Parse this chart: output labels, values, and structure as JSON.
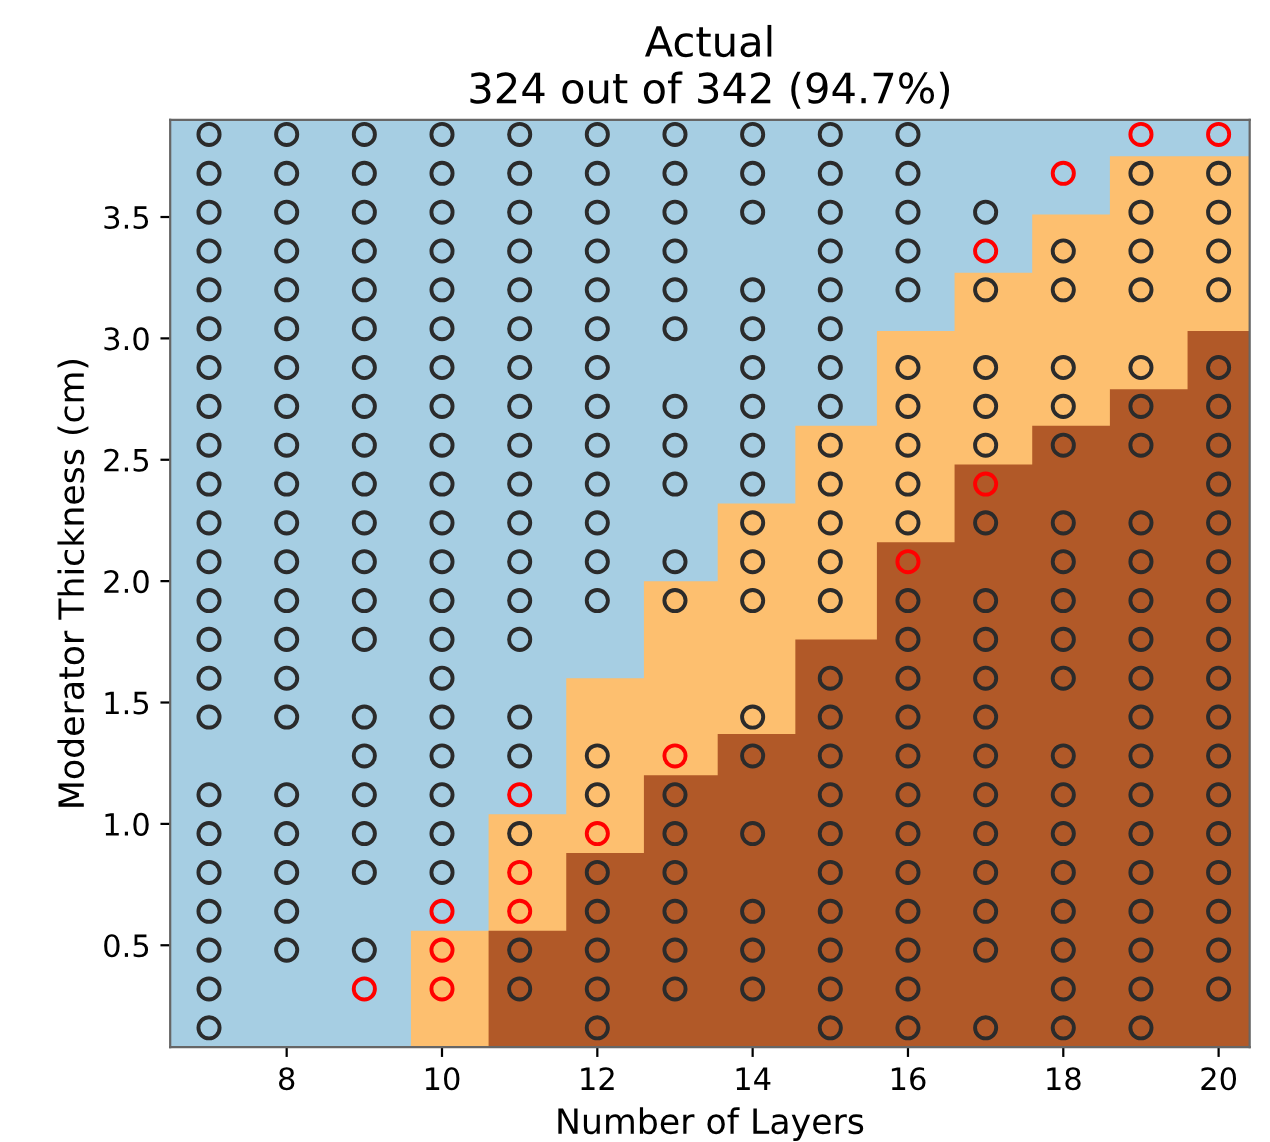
{
  "chart_data": {
    "type": "scatter",
    "title": "Actual\n324 out of 342 (94.7%)",
    "xlabel": "Number of Layers",
    "ylabel": "Moderator Thickness (cm)",
    "xlim": [
      6.5,
      20.4
    ],
    "ylim": [
      0.08,
      3.9
    ],
    "xticks": [
      8,
      10,
      12,
      14,
      16,
      18,
      20
    ],
    "yticks": [
      0.5,
      {
        "value": 1,
        "label": "1.0"
      },
      1.5,
      {
        "value": 2,
        "label": "2.0"
      },
      2.5,
      {
        "value": 3,
        "label": "3.0"
      },
      3.5
    ],
    "bands": [
      {
        "axis": "y",
        "from": 0.08,
        "to": 3.9,
        "color": "#a6cee3"
      }
    ],
    "series": [
      {
        "type": "area",
        "color": "#fdbf6f",
        "x": [
          9.6,
          10.6,
          10.6,
          11.6,
          11.6,
          12.6,
          12.6,
          13.55,
          13.55,
          14.55,
          14.55,
          15.6,
          15.6,
          16.6,
          16.6,
          17.6,
          17.6,
          18.6,
          18.6,
          19.6,
          19.6,
          20.4
        ],
        "values": [
          0.56,
          0.56,
          1.04,
          1.04,
          1.6,
          1.6,
          2.0,
          2.0,
          2.32,
          2.32,
          2.64,
          2.64,
          3.03,
          3.03,
          3.27,
          3.27,
          3.51,
          3.51,
          3.75,
          3.75,
          3.75,
          3.75
        ]
      },
      {
        "type": "area",
        "color": "#b15928",
        "x": [
          10.6,
          11.6,
          11.6,
          12.6,
          12.6,
          13.55,
          13.55,
          14.55,
          14.55,
          15.6,
          15.6,
          16.6,
          16.6,
          17.6,
          17.6,
          18.6,
          18.6,
          19.6,
          19.6,
          20.4
        ],
        "values": [
          0.56,
          0.56,
          0.88,
          0.88,
          1.2,
          1.2,
          1.37,
          1.37,
          1.76,
          1.76,
          2.16,
          2.16,
          2.48,
          2.48,
          2.64,
          2.64,
          2.79,
          2.79,
          3.03,
          3.03
        ]
      },
      {
        "marker": "circle",
        "color": "#2b2b2b",
        "x": [
          7,
          7,
          7,
          7,
          7,
          7,
          7,
          7,
          7,
          7,
          7,
          7,
          7,
          7,
          7,
          7,
          7,
          7,
          7,
          7,
          7,
          7,
          7,
          8,
          8,
          8,
          8,
          8,
          8,
          8,
          8,
          8,
          8,
          8,
          8,
          8,
          8,
          8,
          8,
          8,
          8,
          8,
          8,
          8,
          9,
          9,
          9,
          9,
          9,
          9,
          9,
          9,
          9,
          9,
          9,
          9,
          9,
          9,
          9,
          9,
          9,
          9,
          9,
          9,
          10,
          10,
          10,
          10,
          10,
          10,
          10,
          10,
          10,
          10,
          10,
          10,
          10,
          10,
          10,
          10,
          10,
          10,
          10,
          10,
          11,
          11,
          11,
          11,
          11,
          11,
          11,
          11,
          11,
          11,
          11,
          11,
          11,
          11,
          11,
          11,
          11,
          11,
          11,
          12,
          12,
          12,
          12,
          12,
          12,
          12,
          12,
          12,
          12,
          12,
          12,
          12,
          12,
          12,
          12,
          12,
          12,
          12,
          12,
          13,
          13,
          13,
          13,
          13,
          13,
          13,
          13,
          13,
          13,
          13,
          13,
          13,
          13,
          13,
          13,
          13,
          14,
          14,
          14,
          14,
          14,
          14,
          14,
          14,
          14,
          14,
          14,
          14,
          14,
          14,
          14,
          14,
          14,
          14,
          15,
          15,
          15,
          15,
          15,
          15,
          15,
          15,
          15,
          15,
          15,
          15,
          15,
          15,
          15,
          15,
          15,
          15,
          15,
          15,
          15,
          15,
          15,
          16,
          16,
          16,
          16,
          16,
          16,
          16,
          16,
          16,
          16,
          16,
          16,
          16,
          16,
          16,
          16,
          16,
          16,
          16,
          16,
          16,
          16,
          17,
          17,
          17,
          17,
          17,
          17,
          17,
          17,
          17,
          17,
          17,
          17,
          17,
          17,
          17,
          17,
          17,
          18,
          18,
          18,
          18,
          18,
          18,
          18,
          18,
          18,
          18,
          18,
          18,
          18,
          18,
          18,
          18,
          18,
          18,
          19,
          19,
          19,
          19,
          19,
          19,
          19,
          19,
          19,
          19,
          19,
          19,
          19,
          19,
          19,
          19,
          19,
          19,
          19,
          19,
          19,
          20,
          20,
          20,
          20,
          20,
          20,
          20,
          20,
          20,
          20,
          20,
          20,
          20,
          20,
          20,
          20,
          20,
          20,
          20,
          20,
          20
        ],
        "values": [
          0.16,
          0.32,
          0.48,
          0.64,
          0.8,
          0.96,
          1.12,
          1.44,
          1.6,
          1.76,
          1.92,
          2.08,
          2.24,
          2.4,
          2.56,
          2.72,
          2.88,
          3.04,
          3.2,
          3.36,
          3.52,
          3.68,
          3.84,
          0.48,
          0.64,
          0.8,
          0.96,
          1.12,
          1.44,
          1.6,
          1.76,
          1.92,
          2.08,
          2.24,
          2.4,
          2.56,
          2.72,
          2.88,
          3.04,
          3.2,
          3.36,
          3.52,
          3.68,
          3.84,
          0.48,
          0.8,
          0.96,
          1.12,
          1.28,
          1.44,
          1.76,
          1.92,
          2.08,
          2.24,
          2.4,
          2.56,
          2.72,
          2.88,
          3.04,
          3.2,
          3.36,
          3.52,
          3.68,
          3.84,
          0.8,
          0.96,
          1.12,
          1.28,
          1.44,
          1.6,
          1.76,
          1.92,
          2.08,
          2.24,
          2.4,
          2.56,
          2.72,
          2.88,
          3.04,
          3.2,
          3.36,
          3.52,
          3.68,
          3.84,
          0.32,
          0.48,
          0.96,
          1.28,
          1.44,
          1.76,
          1.92,
          2.08,
          2.24,
          2.4,
          2.56,
          2.72,
          2.88,
          3.04,
          3.2,
          3.36,
          3.52,
          3.68,
          3.84,
          0.16,
          0.32,
          0.48,
          0.64,
          0.8,
          1.12,
          1.28,
          1.92,
          2.08,
          2.24,
          2.4,
          2.56,
          2.72,
          2.88,
          3.04,
          3.2,
          3.36,
          3.52,
          3.68,
          3.84,
          0.32,
          0.48,
          0.64,
          0.8,
          0.96,
          1.12,
          1.92,
          2.08,
          2.4,
          2.56,
          2.72,
          3.04,
          3.2,
          3.36,
          3.52,
          3.68,
          3.84,
          0.32,
          0.48,
          0.64,
          0.96,
          1.28,
          1.44,
          1.92,
          2.08,
          2.24,
          2.4,
          2.56,
          2.72,
          2.88,
          3.04,
          3.2,
          3.52,
          3.68,
          3.84,
          0.16,
          0.32,
          0.48,
          0.64,
          0.8,
          0.96,
          1.12,
          1.28,
          1.44,
          1.6,
          1.92,
          2.08,
          2.24,
          2.4,
          2.56,
          2.72,
          2.88,
          3.04,
          3.2,
          3.36,
          3.52,
          3.68,
          3.84,
          0.16,
          0.32,
          0.48,
          0.64,
          0.8,
          0.96,
          1.12,
          1.28,
          1.44,
          1.6,
          1.76,
          1.92,
          2.24,
          2.4,
          2.56,
          2.72,
          2.88,
          3.2,
          3.36,
          3.52,
          3.68,
          3.84,
          0.16,
          0.48,
          0.64,
          0.8,
          0.96,
          1.12,
          1.28,
          1.44,
          1.6,
          1.76,
          1.92,
          2.24,
          2.56,
          2.72,
          2.88,
          3.2,
          3.52,
          0.16,
          0.32,
          0.48,
          0.64,
          0.8,
          0.96,
          1.12,
          1.28,
          1.6,
          1.76,
          1.92,
          2.08,
          2.24,
          2.56,
          2.72,
          2.88,
          3.2,
          3.36,
          0.16,
          0.32,
          0.48,
          0.64,
          0.8,
          0.96,
          1.12,
          1.28,
          1.44,
          1.6,
          1.76,
          1.92,
          2.08,
          2.24,
          2.56,
          2.72,
          2.88,
          3.2,
          3.36,
          3.52,
          3.68,
          0.32,
          0.48,
          0.64,
          0.8,
          0.96,
          1.12,
          1.28,
          1.44,
          1.6,
          1.76,
          1.92,
          2.08,
          2.24,
          2.4,
          2.56,
          2.72,
          2.88,
          3.2,
          3.36,
          3.52,
          3.68
        ]
      },
      {
        "marker": "circle",
        "color": "#ff0000",
        "x": [
          9,
          10,
          10,
          10,
          11,
          11,
          11,
          12,
          13,
          16,
          17,
          17,
          18,
          19,
          20
        ],
        "values": [
          0.32,
          0.32,
          0.48,
          0.64,
          0.64,
          0.8,
          1.12,
          0.96,
          1.28,
          2.08,
          2.4,
          3.36,
          3.68,
          3.84,
          3.84
        ]
      }
    ]
  }
}
